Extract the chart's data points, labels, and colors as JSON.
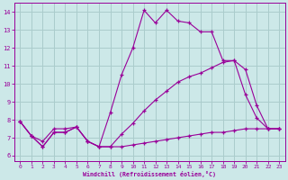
{
  "xlabel": "Windchill (Refroidissement éolien,°C)",
  "background_color": "#cce8e8",
  "grid_color": "#aacccc",
  "line_color": "#990099",
  "x_ticks": [
    0,
    1,
    2,
    3,
    4,
    5,
    6,
    7,
    8,
    9,
    10,
    11,
    12,
    13,
    14,
    15,
    16,
    17,
    18,
    19,
    20,
    21,
    22,
    23
  ],
  "y_ticks": [
    6,
    7,
    8,
    9,
    10,
    11,
    12,
    13,
    14
  ],
  "ylim": [
    5.7,
    14.5
  ],
  "xlim": [
    -0.5,
    23.5
  ],
  "series1_x": [
    0,
    1,
    2,
    3,
    4,
    5,
    6,
    7,
    8,
    9,
    10,
    11,
    12,
    13,
    14,
    15,
    16,
    17,
    18,
    19,
    20,
    21,
    22,
    23
  ],
  "series1_y": [
    7.9,
    7.1,
    6.8,
    7.5,
    7.5,
    7.6,
    6.8,
    6.5,
    8.4,
    10.5,
    12.0,
    14.1,
    13.4,
    14.1,
    13.5,
    13.4,
    12.9,
    12.9,
    11.3,
    11.3,
    9.4,
    8.1,
    7.5,
    7.5
  ],
  "series2_x": [
    0,
    1,
    2,
    3,
    4,
    5,
    6,
    7,
    8,
    9,
    10,
    11,
    12,
    13,
    14,
    15,
    16,
    17,
    18,
    19,
    20,
    21,
    22,
    23
  ],
  "series2_y": [
    7.9,
    7.1,
    6.5,
    7.3,
    7.3,
    7.6,
    6.8,
    6.5,
    6.5,
    6.5,
    6.6,
    6.7,
    6.8,
    6.9,
    7.0,
    7.1,
    7.2,
    7.3,
    7.3,
    7.4,
    7.5,
    7.5,
    7.5,
    7.5
  ],
  "series3_x": [
    0,
    1,
    2,
    3,
    4,
    5,
    6,
    7,
    8,
    9,
    10,
    11,
    12,
    13,
    14,
    15,
    16,
    17,
    18,
    19,
    20,
    21,
    22,
    23
  ],
  "series3_y": [
    7.9,
    7.1,
    6.5,
    7.3,
    7.3,
    7.6,
    6.8,
    6.5,
    6.5,
    7.2,
    7.8,
    8.5,
    9.1,
    9.6,
    10.1,
    10.4,
    10.6,
    10.9,
    11.2,
    11.3,
    10.8,
    8.8,
    7.5,
    7.5
  ]
}
